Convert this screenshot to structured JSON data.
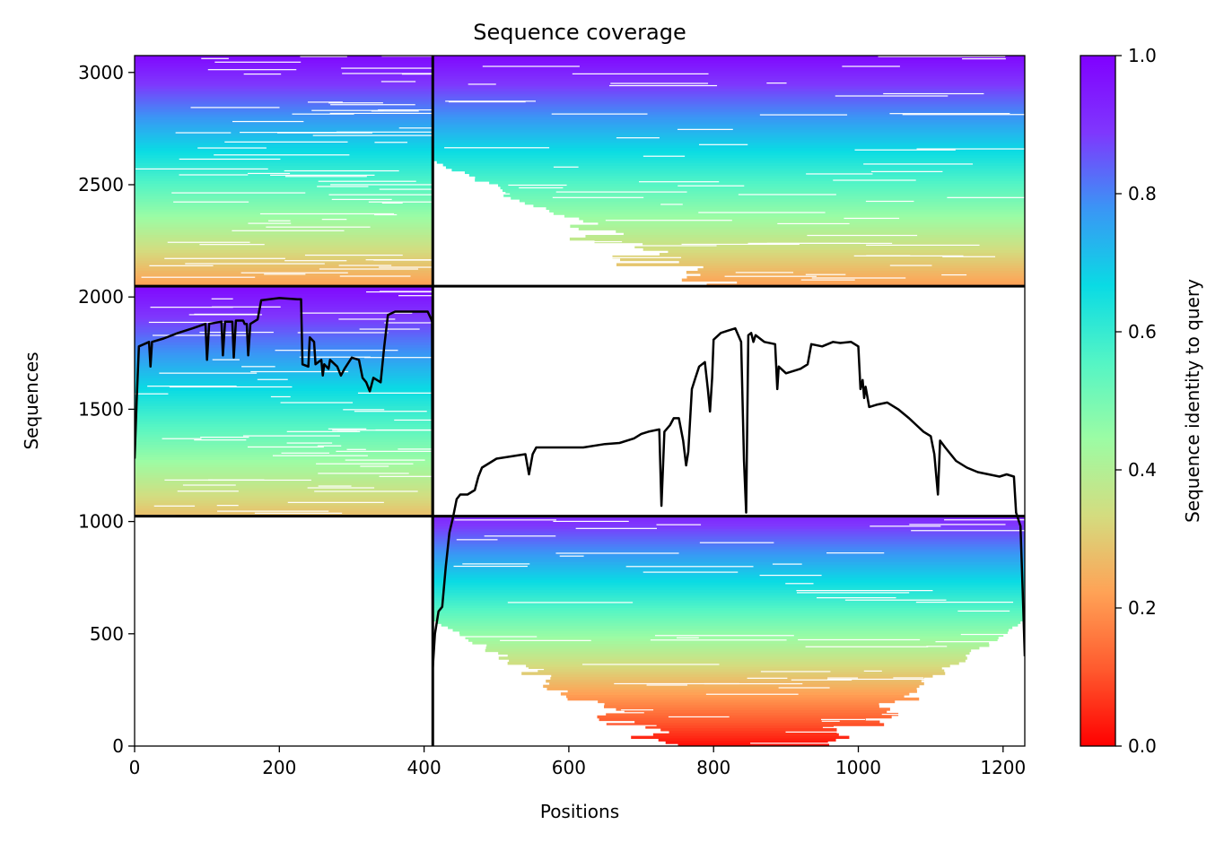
{
  "chart_data": {
    "type": "heatmap",
    "title": "Sequence coverage",
    "xlabel": "Positions",
    "ylabel": "Sequences",
    "xlim": [
      0,
      1230
    ],
    "ylim": [
      0,
      3075
    ],
    "x_ticks": [
      0,
      200,
      400,
      600,
      800,
      1000,
      1200
    ],
    "y_ticks": [
      0,
      500,
      1000,
      1500,
      2000,
      2500,
      3000
    ],
    "grid": false,
    "colormap": "rainbow",
    "colorbar": {
      "label": "Sequence identity to query",
      "range": [
        0,
        1
      ],
      "ticks": [
        0.0,
        0.2,
        0.4,
        0.6,
        0.8,
        1.0
      ],
      "tick_labels": [
        "0.0",
        "0.2",
        "0.4",
        "0.6",
        "0.8",
        "1.0"
      ],
      "colors": [
        "#ff0000",
        "#ff5a2e",
        "#ffa256",
        "#d4dc7f",
        "#9cfca4",
        "#54f5c5",
        "#0adbe4",
        "#3a96f5",
        "#7f37fd",
        "#8000ff"
      ]
    },
    "dividers": {
      "vertical_x": 412,
      "horizontal_y": [
        1024,
        2048
      ],
      "color": "#000000"
    },
    "blocks": [
      {
        "x": [
          0,
          412
        ],
        "y": [
          2048,
          3075
        ],
        "identity_top": 0.98,
        "identity_bottom": 0.22
      },
      {
        "x": [
          412,
          1230
        ],
        "y": [
          2048,
          3075
        ],
        "identity_top": 0.98,
        "identity_bottom": 0.22
      },
      {
        "x": [
          0,
          412
        ],
        "y": [
          1024,
          2048
        ],
        "identity_top": 0.98,
        "identity_bottom": 0.28
      },
      {
        "x": [
          412,
          1230
        ],
        "y": [
          0,
          1024
        ],
        "identity_top": 0.92,
        "identity_bottom": 0.02
      }
    ],
    "coverage_line": {
      "color": "#000000",
      "points": [
        [
          0,
          1280
        ],
        [
          3,
          1550
        ],
        [
          6,
          1780
        ],
        [
          20,
          1800
        ],
        [
          22,
          1690
        ],
        [
          24,
          1800
        ],
        [
          40,
          1815
        ],
        [
          60,
          1840
        ],
        [
          80,
          1860
        ],
        [
          98,
          1880
        ],
        [
          100,
          1720
        ],
        [
          103,
          1880
        ],
        [
          120,
          1890
        ],
        [
          122,
          1740
        ],
        [
          125,
          1890
        ],
        [
          135,
          1890
        ],
        [
          137,
          1730
        ],
        [
          140,
          1895
        ],
        [
          150,
          1895
        ],
        [
          152,
          1880
        ],
        [
          155,
          1880
        ],
        [
          157,
          1740
        ],
        [
          160,
          1880
        ],
        [
          170,
          1900
        ],
        [
          175,
          1985
        ],
        [
          200,
          1995
        ],
        [
          225,
          1990
        ],
        [
          230,
          1990
        ],
        [
          232,
          1700
        ],
        [
          240,
          1690
        ],
        [
          242,
          1820
        ],
        [
          248,
          1800
        ],
        [
          250,
          1700
        ],
        [
          258,
          1720
        ],
        [
          260,
          1650
        ],
        [
          262,
          1700
        ],
        [
          268,
          1680
        ],
        [
          270,
          1720
        ],
        [
          280,
          1690
        ],
        [
          285,
          1650
        ],
        [
          290,
          1680
        ],
        [
          300,
          1730
        ],
        [
          310,
          1720
        ],
        [
          315,
          1640
        ],
        [
          320,
          1620
        ],
        [
          325,
          1580
        ],
        [
          330,
          1640
        ],
        [
          340,
          1620
        ],
        [
          345,
          1780
        ],
        [
          350,
          1920
        ],
        [
          360,
          1935
        ],
        [
          390,
          1935
        ],
        [
          405,
          1935
        ],
        [
          410,
          1900
        ],
        [
          411,
          1890
        ],
        [
          412,
          350
        ],
        [
          415,
          500
        ],
        [
          420,
          600
        ],
        [
          425,
          620
        ],
        [
          430,
          800
        ],
        [
          435,
          950
        ],
        [
          440,
          1020
        ],
        [
          445,
          1100
        ],
        [
          450,
          1120
        ],
        [
          460,
          1120
        ],
        [
          470,
          1140
        ],
        [
          475,
          1200
        ],
        [
          480,
          1240
        ],
        [
          490,
          1260
        ],
        [
          500,
          1280
        ],
        [
          520,
          1290
        ],
        [
          540,
          1300
        ],
        [
          545,
          1210
        ],
        [
          550,
          1300
        ],
        [
          555,
          1330
        ],
        [
          580,
          1330
        ],
        [
          620,
          1330
        ],
        [
          650,
          1345
        ],
        [
          670,
          1350
        ],
        [
          690,
          1370
        ],
        [
          700,
          1390
        ],
        [
          710,
          1400
        ],
        [
          725,
          1410
        ],
        [
          728,
          1070
        ],
        [
          732,
          1400
        ],
        [
          740,
          1430
        ],
        [
          745,
          1460
        ],
        [
          752,
          1460
        ],
        [
          758,
          1360
        ],
        [
          762,
          1250
        ],
        [
          765,
          1310
        ],
        [
          770,
          1590
        ],
        [
          775,
          1640
        ],
        [
          780,
          1690
        ],
        [
          788,
          1710
        ],
        [
          792,
          1590
        ],
        [
          795,
          1490
        ],
        [
          798,
          1640
        ],
        [
          800,
          1810
        ],
        [
          810,
          1840
        ],
        [
          820,
          1850
        ],
        [
          830,
          1860
        ],
        [
          838,
          1800
        ],
        [
          842,
          1270
        ],
        [
          845,
          1040
        ],
        [
          848,
          1830
        ],
        [
          852,
          1840
        ],
        [
          855,
          1800
        ],
        [
          858,
          1830
        ],
        [
          870,
          1800
        ],
        [
          885,
          1790
        ],
        [
          888,
          1590
        ],
        [
          890,
          1690
        ],
        [
          900,
          1660
        ],
        [
          920,
          1680
        ],
        [
          930,
          1700
        ],
        [
          935,
          1790
        ],
        [
          950,
          1780
        ],
        [
          965,
          1800
        ],
        [
          975,
          1795
        ],
        [
          990,
          1800
        ],
        [
          1000,
          1780
        ],
        [
          1003,
          1590
        ],
        [
          1006,
          1630
        ],
        [
          1008,
          1550
        ],
        [
          1010,
          1600
        ],
        [
          1015,
          1510
        ],
        [
          1025,
          1520
        ],
        [
          1040,
          1530
        ],
        [
          1055,
          1500
        ],
        [
          1070,
          1460
        ],
        [
          1080,
          1430
        ],
        [
          1090,
          1400
        ],
        [
          1100,
          1380
        ],
        [
          1105,
          1300
        ],
        [
          1110,
          1120
        ],
        [
          1113,
          1360
        ],
        [
          1120,
          1330
        ],
        [
          1135,
          1270
        ],
        [
          1150,
          1240
        ],
        [
          1165,
          1220
        ],
        [
          1180,
          1210
        ],
        [
          1195,
          1200
        ],
        [
          1205,
          1210
        ],
        [
          1215,
          1200
        ],
        [
          1218,
          1040
        ],
        [
          1224,
          980
        ],
        [
          1227,
          700
        ],
        [
          1230,
          400
        ]
      ]
    }
  }
}
